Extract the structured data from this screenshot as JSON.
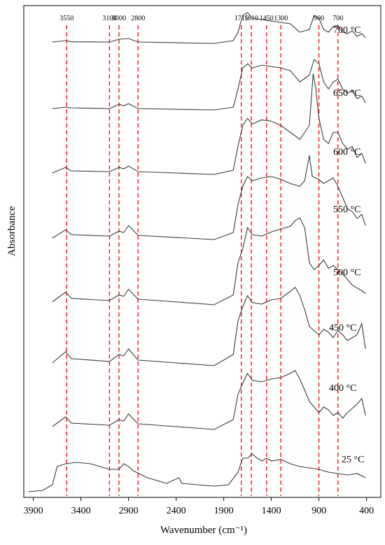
{
  "chart_data": {
    "type": "line",
    "title": "",
    "xlabel": "Wavenumber (cm⁻¹)",
    "ylabel": "Absorbance",
    "xlim": [
      4000,
      250
    ],
    "x_reversed": true,
    "y_tick_labels_shown": false,
    "x_ticks": [
      3900,
      3400,
      2900,
      2400,
      1900,
      1400,
      900,
      400
    ],
    "x_tick_labels": [
      "3900",
      "3400",
      "2900",
      "2400",
      "1900",
      "1400",
      "900",
      "400"
    ],
    "reference_lines": {
      "color": "#ff0000",
      "style": "dashed",
      "positions": [
        3550,
        3100,
        3000,
        2800,
        1715,
        1610,
        1450,
        1300,
        900,
        700
      ],
      "labels": [
        "3550",
        "3100",
        "3000",
        "2800",
        "1715",
        "1610",
        "1450",
        "1300",
        "900",
        "700"
      ]
    },
    "line_color": "#3a3a3a",
    "series": [
      {
        "name": "700 °C",
        "baseline": 0.0,
        "points": [
          [
            3700,
            0.01
          ],
          [
            3560,
            0.02
          ],
          [
            3500,
            0.012
          ],
          [
            3100,
            0.01
          ],
          [
            3000,
            0.03
          ],
          [
            2900,
            0.035
          ],
          [
            2800,
            0.01
          ],
          [
            2000,
            0.0
          ],
          [
            1800,
            0.02
          ],
          [
            1750,
            0.08
          ],
          [
            1700,
            0.2
          ],
          [
            1650,
            0.22
          ],
          [
            1600,
            0.18
          ],
          [
            1500,
            0.17
          ],
          [
            1400,
            0.16
          ],
          [
            1300,
            0.15
          ],
          [
            1200,
            0.14
          ],
          [
            1100,
            0.08
          ],
          [
            1000,
            0.1
          ],
          [
            950,
            0.2
          ],
          [
            900,
            0.18
          ],
          [
            850,
            0.1
          ],
          [
            800,
            0.08
          ],
          [
            750,
            0.12
          ],
          [
            700,
            0.13
          ],
          [
            650,
            0.08
          ],
          [
            600,
            0.07
          ],
          [
            550,
            0.09
          ],
          [
            500,
            0.05
          ],
          [
            450,
            0.07
          ],
          [
            410,
            0.04
          ]
        ]
      },
      {
        "name": "650 °C",
        "baseline": 0.0,
        "points": [
          [
            3700,
            0.01
          ],
          [
            3560,
            0.02
          ],
          [
            3500,
            0.015
          ],
          [
            3100,
            0.01
          ],
          [
            3000,
            0.04
          ],
          [
            2950,
            0.03
          ],
          [
            2900,
            0.045
          ],
          [
            2800,
            0.01
          ],
          [
            2000,
            0.0
          ],
          [
            1800,
            0.02
          ],
          [
            1750,
            0.15
          ],
          [
            1700,
            0.3
          ],
          [
            1650,
            0.33
          ],
          [
            1600,
            0.3
          ],
          [
            1500,
            0.32
          ],
          [
            1400,
            0.31
          ],
          [
            1300,
            0.3
          ],
          [
            1200,
            0.28
          ],
          [
            1100,
            0.2
          ],
          [
            1000,
            0.25
          ],
          [
            950,
            0.36
          ],
          [
            900,
            0.33
          ],
          [
            850,
            0.2
          ],
          [
            800,
            0.15
          ],
          [
            750,
            0.2
          ],
          [
            700,
            0.22
          ],
          [
            650,
            0.15
          ],
          [
            600,
            0.12
          ],
          [
            550,
            0.14
          ],
          [
            500,
            0.08
          ],
          [
            450,
            0.1
          ],
          [
            410,
            0.05
          ]
        ]
      },
      {
        "name": "600 °C",
        "baseline": 0.0,
        "points": [
          [
            3700,
            0.01
          ],
          [
            3560,
            0.05
          ],
          [
            3500,
            0.025
          ],
          [
            3100,
            0.02
          ],
          [
            3000,
            0.05
          ],
          [
            2950,
            0.04
          ],
          [
            2900,
            0.06
          ],
          [
            2800,
            0.02
          ],
          [
            2000,
            0.0
          ],
          [
            1800,
            0.03
          ],
          [
            1750,
            0.2
          ],
          [
            1700,
            0.35
          ],
          [
            1650,
            0.4
          ],
          [
            1600,
            0.36
          ],
          [
            1500,
            0.39
          ],
          [
            1400,
            0.38
          ],
          [
            1300,
            0.35
          ],
          [
            1200,
            0.3
          ],
          [
            1100,
            0.25
          ],
          [
            1000,
            0.35
          ],
          [
            960,
            0.72
          ],
          [
            930,
            0.6
          ],
          [
            900,
            0.4
          ],
          [
            850,
            0.25
          ],
          [
            800,
            0.22
          ],
          [
            750,
            0.3
          ],
          [
            700,
            0.3
          ],
          [
            650,
            0.22
          ],
          [
            600,
            0.18
          ],
          [
            550,
            0.2
          ],
          [
            500,
            0.12
          ],
          [
            450,
            0.15
          ],
          [
            410,
            0.08
          ]
        ]
      },
      {
        "name": "550 °C",
        "baseline": 0.0,
        "points": [
          [
            3700,
            0.01
          ],
          [
            3560,
            0.07
          ],
          [
            3500,
            0.035
          ],
          [
            3100,
            0.025
          ],
          [
            3000,
            0.06
          ],
          [
            2950,
            0.05
          ],
          [
            2900,
            0.1
          ],
          [
            2800,
            0.03
          ],
          [
            2000,
            0.0
          ],
          [
            1800,
            0.05
          ],
          [
            1750,
            0.25
          ],
          [
            1700,
            0.38
          ],
          [
            1650,
            0.45
          ],
          [
            1600,
            0.42
          ],
          [
            1500,
            0.44
          ],
          [
            1400,
            0.45
          ],
          [
            1300,
            0.43
          ],
          [
            1200,
            0.4
          ],
          [
            1100,
            0.38
          ],
          [
            1050,
            0.42
          ],
          [
            1000,
            0.6
          ],
          [
            970,
            0.45
          ],
          [
            900,
            0.43
          ],
          [
            850,
            0.4
          ],
          [
            800,
            0.42
          ],
          [
            750,
            0.44
          ],
          [
            700,
            0.38
          ],
          [
            650,
            0.3
          ],
          [
            600,
            0.22
          ],
          [
            550,
            0.2
          ],
          [
            500,
            0.15
          ],
          [
            450,
            0.18
          ],
          [
            410,
            0.1
          ]
        ]
      },
      {
        "name": "500 °C",
        "baseline": 0.0,
        "points": [
          [
            3700,
            0.02
          ],
          [
            3560,
            0.09
          ],
          [
            3500,
            0.045
          ],
          [
            3100,
            0.03
          ],
          [
            3000,
            0.07
          ],
          [
            2950,
            0.06
          ],
          [
            2900,
            0.11
          ],
          [
            2800,
            0.04
          ],
          [
            2000,
            0.0
          ],
          [
            1800,
            0.07
          ],
          [
            1750,
            0.3
          ],
          [
            1700,
            0.4
          ],
          [
            1650,
            0.55
          ],
          [
            1600,
            0.5
          ],
          [
            1500,
            0.49
          ],
          [
            1400,
            0.52
          ],
          [
            1300,
            0.54
          ],
          [
            1200,
            0.56
          ],
          [
            1150,
            0.6
          ],
          [
            1100,
            0.62
          ],
          [
            1050,
            0.55
          ],
          [
            1000,
            0.3
          ],
          [
            950,
            0.25
          ],
          [
            900,
            0.28
          ],
          [
            850,
            0.32
          ],
          [
            800,
            0.26
          ],
          [
            750,
            0.28
          ],
          [
            700,
            0.25
          ],
          [
            650,
            0.22
          ],
          [
            600,
            0.18
          ],
          [
            550,
            0.14
          ],
          [
            500,
            0.12
          ],
          [
            450,
            0.1
          ],
          [
            410,
            0.08
          ]
        ]
      },
      {
        "name": "450 °C",
        "baseline": 0.0,
        "points": [
          [
            3700,
            0.02
          ],
          [
            3560,
            0.1
          ],
          [
            3500,
            0.05
          ],
          [
            3100,
            0.03
          ],
          [
            3000,
            0.08
          ],
          [
            2950,
            0.07
          ],
          [
            2900,
            0.12
          ],
          [
            2800,
            0.04
          ],
          [
            2000,
            0.0
          ],
          [
            1800,
            0.08
          ],
          [
            1750,
            0.32
          ],
          [
            1700,
            0.42
          ],
          [
            1650,
            0.5
          ],
          [
            1600,
            0.45
          ],
          [
            1500,
            0.44
          ],
          [
            1400,
            0.47
          ],
          [
            1300,
            0.48
          ],
          [
            1200,
            0.53
          ],
          [
            1150,
            0.56
          ],
          [
            1100,
            0.5
          ],
          [
            1050,
            0.4
          ],
          [
            1000,
            0.28
          ],
          [
            950,
            0.25
          ],
          [
            900,
            0.22
          ],
          [
            850,
            0.26
          ],
          [
            800,
            0.24
          ],
          [
            750,
            0.2
          ],
          [
            700,
            0.25
          ],
          [
            650,
            0.22
          ],
          [
            600,
            0.18
          ],
          [
            550,
            0.2
          ],
          [
            500,
            0.22
          ],
          [
            450,
            0.3
          ],
          [
            410,
            0.12
          ]
        ]
      },
      {
        "name": "400 °C",
        "baseline": 0.0,
        "points": [
          [
            3700,
            0.02
          ],
          [
            3560,
            0.09
          ],
          [
            3500,
            0.045
          ],
          [
            3100,
            0.03
          ],
          [
            3000,
            0.07
          ],
          [
            2950,
            0.06
          ],
          [
            2900,
            0.11
          ],
          [
            2800,
            0.04
          ],
          [
            2000,
            0.0
          ],
          [
            1800,
            0.07
          ],
          [
            1750,
            0.25
          ],
          [
            1700,
            0.33
          ],
          [
            1650,
            0.4
          ],
          [
            1600,
            0.35
          ],
          [
            1500,
            0.34
          ],
          [
            1400,
            0.36
          ],
          [
            1300,
            0.37
          ],
          [
            1200,
            0.4
          ],
          [
            1150,
            0.42
          ],
          [
            1100,
            0.36
          ],
          [
            1050,
            0.28
          ],
          [
            1000,
            0.2
          ],
          [
            950,
            0.16
          ],
          [
            900,
            0.12
          ],
          [
            850,
            0.16
          ],
          [
            800,
            0.14
          ],
          [
            750,
            0.1
          ],
          [
            700,
            0.12
          ],
          [
            650,
            0.08
          ],
          [
            600,
            0.12
          ],
          [
            550,
            0.15
          ],
          [
            500,
            0.18
          ],
          [
            450,
            0.22
          ],
          [
            410,
            0.1
          ]
        ]
      },
      {
        "name": "25 °C",
        "baseline": 0.0,
        "points": [
          [
            3950,
            0.0
          ],
          [
            3800,
            0.01
          ],
          [
            3700,
            0.05
          ],
          [
            3650,
            0.18
          ],
          [
            3560,
            0.2
          ],
          [
            3450,
            0.21
          ],
          [
            3300,
            0.2
          ],
          [
            3100,
            0.16
          ],
          [
            3000,
            0.16
          ],
          [
            2950,
            0.2
          ],
          [
            2900,
            0.18
          ],
          [
            2850,
            0.15
          ],
          [
            2700,
            0.1
          ],
          [
            2500,
            0.06
          ],
          [
            2370,
            0.1
          ],
          [
            2340,
            0.06
          ],
          [
            2000,
            0.04
          ],
          [
            1850,
            0.05
          ],
          [
            1750,
            0.14
          ],
          [
            1700,
            0.24
          ],
          [
            1650,
            0.24
          ],
          [
            1600,
            0.27
          ],
          [
            1550,
            0.24
          ],
          [
            1500,
            0.22
          ],
          [
            1450,
            0.24
          ],
          [
            1400,
            0.22
          ],
          [
            1300,
            0.23
          ],
          [
            1200,
            0.2
          ],
          [
            1100,
            0.18
          ],
          [
            1000,
            0.17
          ],
          [
            900,
            0.16
          ],
          [
            800,
            0.14
          ],
          [
            700,
            0.13
          ],
          [
            600,
            0.12
          ],
          [
            500,
            0.13
          ],
          [
            410,
            0.1
          ]
        ]
      }
    ]
  }
}
